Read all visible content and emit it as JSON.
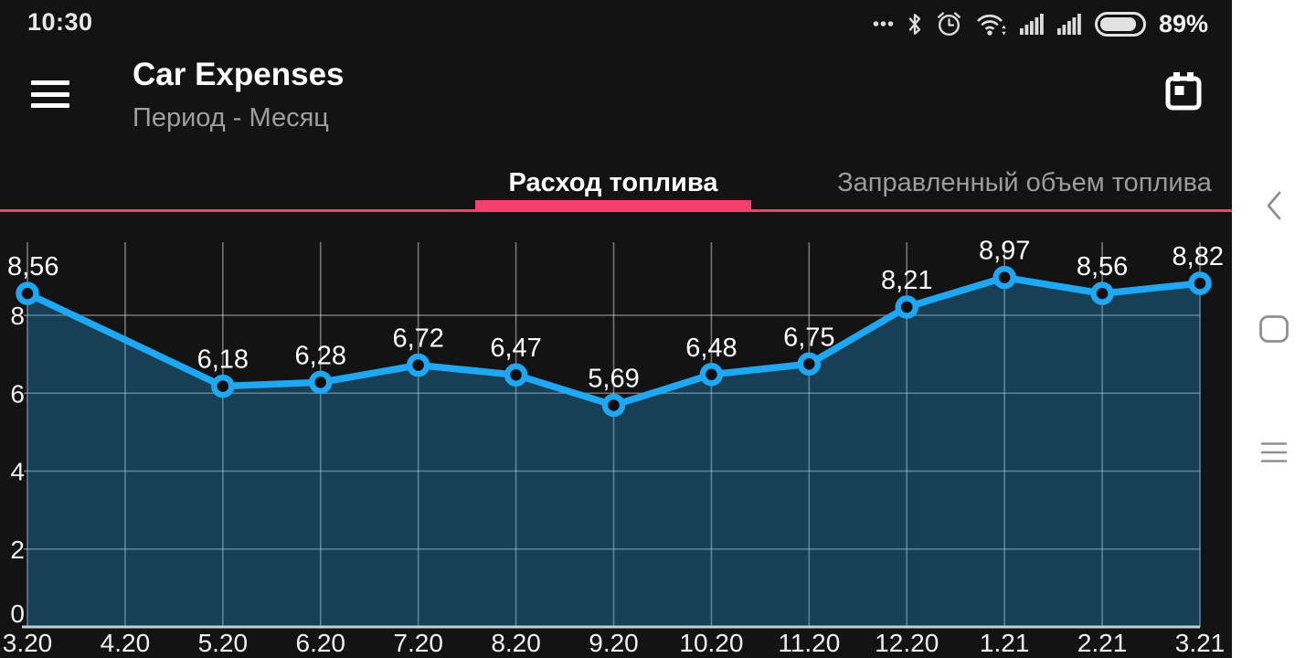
{
  "status_bar": {
    "time": "10:30",
    "battery_percent": "89%",
    "icons": [
      "ellipsis",
      "bluetooth",
      "alarm-clock",
      "wifi",
      "cell-signal-sim1",
      "cell-signal-sim2",
      "battery"
    ]
  },
  "header": {
    "title": "Car Expenses",
    "subtitle": "Период - Месяц",
    "icons": [
      "menu",
      "calendar"
    ]
  },
  "tabs": [
    {
      "label": "Расход топлива",
      "active": true
    },
    {
      "label": "Заправленный объем топлива",
      "active": false
    }
  ],
  "nav_bar": {
    "icons": [
      "back",
      "home",
      "recents"
    ]
  },
  "colors": {
    "background": "#131313",
    "accent_pink": "#f8406e",
    "line_blue": "#1ea7f2",
    "area_fill": "rgba(34,167,240,0.30)",
    "marker_center": "#0d0f12",
    "grid_line": "rgba(255,255,255,0.42)",
    "axis_line": "#c9cdd1",
    "tick_text": "#f0f0f0",
    "label_text": "#ffffff",
    "nav_rail_bg": "#ffffff",
    "nav_icon": "#8f8f8f",
    "inactive_text": "#9c9c9c"
  },
  "chart_data": {
    "type": "line",
    "title": "",
    "xlabel": "",
    "ylabel": "",
    "x_labels": [
      "3.20",
      "4.20",
      "5.20",
      "6.20",
      "7.20",
      "8.20",
      "9.20",
      "10.20",
      "11.20",
      "12.20",
      "1.21",
      "2.21",
      "3.21"
    ],
    "y_ticks": [
      0,
      2,
      4,
      6,
      8
    ],
    "ylim": [
      0,
      9.9
    ],
    "grid": true,
    "area": true,
    "legend": "none",
    "series": [
      {
        "name": "Расход топлива",
        "points": [
          {
            "x": "3.20",
            "y": 8.56,
            "label": "8,56"
          },
          {
            "x": "5.20",
            "y": 6.18,
            "label": "6,18"
          },
          {
            "x": "6.20",
            "y": 6.28,
            "label": "6,28"
          },
          {
            "x": "7.20",
            "y": 6.72,
            "label": "6,72"
          },
          {
            "x": "8.20",
            "y": 6.47,
            "label": "6,47"
          },
          {
            "x": "9.20",
            "y": 5.69,
            "label": "5,69"
          },
          {
            "x": "10.20",
            "y": 6.48,
            "label": "6,48"
          },
          {
            "x": "11.20",
            "y": 6.75,
            "label": "6,75"
          },
          {
            "x": "12.20",
            "y": 8.21,
            "label": "8,21"
          },
          {
            "x": "1.21",
            "y": 8.97,
            "label": "8,97"
          },
          {
            "x": "2.21",
            "y": 8.56,
            "label": "8,56"
          },
          {
            "x": "3.21",
            "y": 8.82,
            "label": "8,82"
          }
        ]
      }
    ]
  }
}
